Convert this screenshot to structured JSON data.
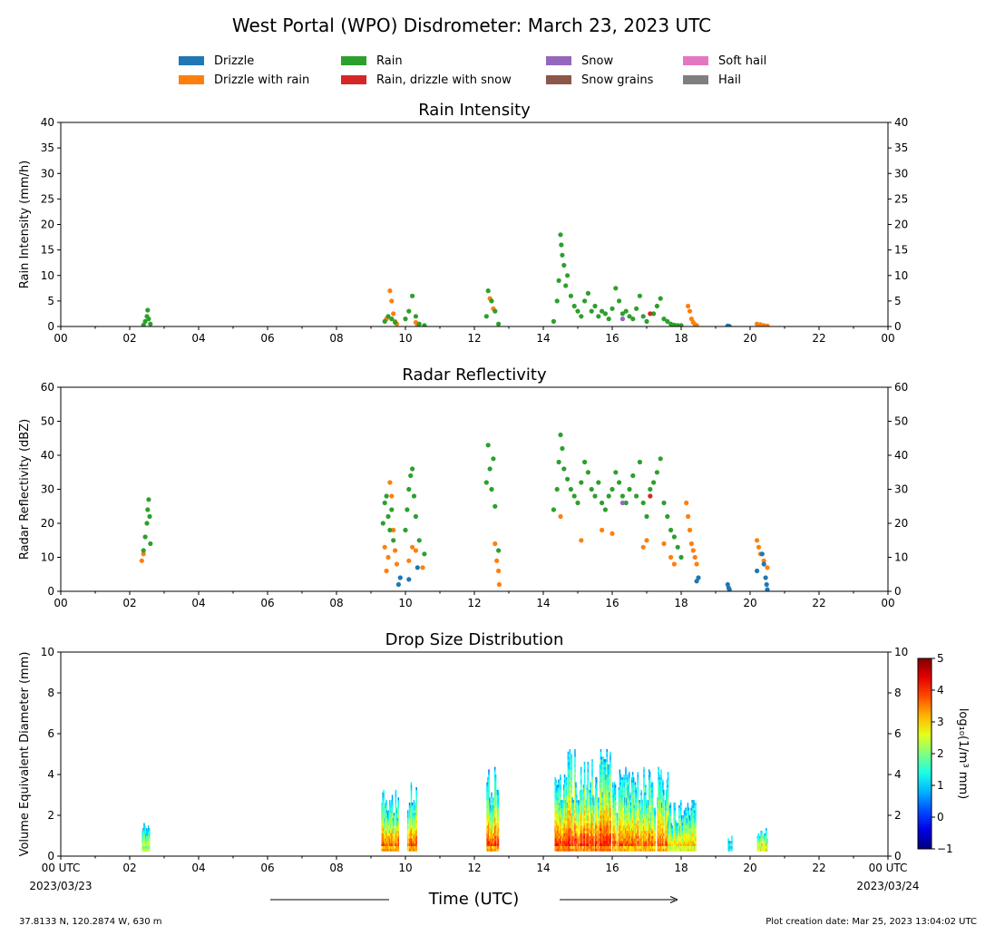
{
  "title": "West Portal (WPO) Disdrometer: March 23, 2023 UTC",
  "legend": [
    {
      "label": "Drizzle",
      "color": "#1f77b4"
    },
    {
      "label": "Drizzle with rain",
      "color": "#ff7f0e"
    },
    {
      "label": "Rain",
      "color": "#2ca02c"
    },
    {
      "label": "Rain, drizzle with snow",
      "color": "#d62728"
    },
    {
      "label": "Snow",
      "color": "#9467bd"
    },
    {
      "label": "Snow grains",
      "color": "#8c564b"
    },
    {
      "label": "Soft hail",
      "color": "#e377c2"
    },
    {
      "label": "Hail",
      "color": "#7f7f7f"
    }
  ],
  "xaxis": {
    "label": "Time (UTC)",
    "ticks": [
      "00",
      "02",
      "04",
      "06",
      "08",
      "10",
      "12",
      "14",
      "16",
      "18",
      "20",
      "22",
      "00"
    ],
    "bottom_first": "00 UTC",
    "bottom_last": "00 UTC",
    "start_date": "2023/03/23",
    "end_date": "2023/03/24"
  },
  "footer": {
    "location": "37.8133 N, 120.2874 W, 630 m",
    "creation": "Plot creation date: Mar 25, 2023 13:04:02 UTC"
  },
  "chart_data": [
    {
      "type": "scatter",
      "title": "Rain Intensity",
      "ylabel": "Rain Intensity (mm/h)",
      "xlim": [
        0,
        24
      ],
      "ylim": [
        0,
        40
      ],
      "yticks": [
        0,
        5,
        10,
        15,
        20,
        25,
        30,
        35,
        40
      ],
      "series": [
        {
          "name": "Rain",
          "color": "#2ca02c",
          "points": [
            [
              2.4,
              0.3
            ],
            [
              2.45,
              1.0
            ],
            [
              2.5,
              2.0
            ],
            [
              2.52,
              3.2
            ],
            [
              2.55,
              1.5
            ],
            [
              2.6,
              0.5
            ],
            [
              9.4,
              1.0
            ],
            [
              9.5,
              2.0
            ],
            [
              9.6,
              1.5
            ],
            [
              9.7,
              0.8
            ],
            [
              10.0,
              1.5
            ],
            [
              10.1,
              3.0
            ],
            [
              10.2,
              6.0
            ],
            [
              10.3,
              2.0
            ],
            [
              10.4,
              0.5
            ],
            [
              10.55,
              0.2
            ],
            [
              12.35,
              2.0
            ],
            [
              12.4,
              7.0
            ],
            [
              12.5,
              5.0
            ],
            [
              12.6,
              3.0
            ],
            [
              12.7,
              0.5
            ],
            [
              14.3,
              1.0
            ],
            [
              14.4,
              5.0
            ],
            [
              14.45,
              9.0
            ],
            [
              14.5,
              18.0
            ],
            [
              14.52,
              16.0
            ],
            [
              14.55,
              14.0
            ],
            [
              14.6,
              12.0
            ],
            [
              14.65,
              8.0
            ],
            [
              14.7,
              10.0
            ],
            [
              14.8,
              6.0
            ],
            [
              14.9,
              4.0
            ],
            [
              15.0,
              3.0
            ],
            [
              15.1,
              2.0
            ],
            [
              15.2,
              5.0
            ],
            [
              15.3,
              6.5
            ],
            [
              15.4,
              3.0
            ],
            [
              15.5,
              4.0
            ],
            [
              15.6,
              2.0
            ],
            [
              15.7,
              3.0
            ],
            [
              15.8,
              2.5
            ],
            [
              15.9,
              1.5
            ],
            [
              16.0,
              3.5
            ],
            [
              16.1,
              7.5
            ],
            [
              16.2,
              5.0
            ],
            [
              16.3,
              2.5
            ],
            [
              16.4,
              3.0
            ],
            [
              16.5,
              2.0
            ],
            [
              16.6,
              1.5
            ],
            [
              16.7,
              3.5
            ],
            [
              16.8,
              6.0
            ],
            [
              16.9,
              2.0
            ],
            [
              17.0,
              1.0
            ],
            [
              17.2,
              2.5
            ],
            [
              17.3,
              4.0
            ],
            [
              17.4,
              5.5
            ],
            [
              17.5,
              1.5
            ],
            [
              17.6,
              1.0
            ],
            [
              17.7,
              0.5
            ],
            [
              17.8,
              0.3
            ],
            [
              17.9,
              0.2
            ],
            [
              18.0,
              0.2
            ]
          ]
        },
        {
          "name": "Drizzle with rain",
          "color": "#ff7f0e",
          "points": [
            [
              9.45,
              1.5
            ],
            [
              9.55,
              7.0
            ],
            [
              9.6,
              5.0
            ],
            [
              9.65,
              2.5
            ],
            [
              9.7,
              1.0
            ],
            [
              9.75,
              0.5
            ],
            [
              10.3,
              0.8
            ],
            [
              10.35,
              0.3
            ],
            [
              12.45,
              5.5
            ],
            [
              12.55,
              3.5
            ],
            [
              18.2,
              4.0
            ],
            [
              18.25,
              3.0
            ],
            [
              18.3,
              1.5
            ],
            [
              18.35,
              0.8
            ],
            [
              18.4,
              0.4
            ],
            [
              18.45,
              0.2
            ],
            [
              20.2,
              0.5
            ],
            [
              20.3,
              0.4
            ],
            [
              20.4,
              0.2
            ],
            [
              20.5,
              0.1
            ]
          ]
        },
        {
          "name": "Drizzle",
          "color": "#1f77b4",
          "points": [
            [
              19.35,
              0.1
            ],
            [
              19.4,
              0.05
            ]
          ]
        },
        {
          "name": "Rain, drizzle with snow",
          "color": "#d62728",
          "points": [
            [
              17.1,
              2.5
            ]
          ]
        },
        {
          "name": "Snow",
          "color": "#9467bd",
          "points": [
            [
              16.3,
              1.5
            ]
          ]
        }
      ]
    },
    {
      "type": "scatter",
      "title": "Radar Reflectivity",
      "ylabel": "Radar Reflectivity (dBZ)",
      "xlim": [
        0,
        24
      ],
      "ylim": [
        0,
        60
      ],
      "yticks": [
        0,
        10,
        20,
        30,
        40,
        50,
        60
      ],
      "series": [
        {
          "name": "Rain",
          "color": "#2ca02c",
          "points": [
            [
              2.4,
              12
            ],
            [
              2.45,
              16
            ],
            [
              2.5,
              20
            ],
            [
              2.52,
              24
            ],
            [
              2.55,
              27
            ],
            [
              2.58,
              22
            ],
            [
              2.6,
              14
            ],
            [
              9.35,
              20
            ],
            [
              9.4,
              26
            ],
            [
              9.45,
              28
            ],
            [
              9.5,
              22
            ],
            [
              9.55,
              18
            ],
            [
              9.6,
              24
            ],
            [
              9.65,
              15
            ],
            [
              10.0,
              18
            ],
            [
              10.05,
              24
            ],
            [
              10.1,
              30
            ],
            [
              10.15,
              34
            ],
            [
              10.2,
              36
            ],
            [
              10.25,
              28
            ],
            [
              10.3,
              22
            ],
            [
              10.4,
              15
            ],
            [
              10.55,
              11
            ],
            [
              12.35,
              32
            ],
            [
              12.4,
              43
            ],
            [
              12.45,
              36
            ],
            [
              12.5,
              30
            ],
            [
              12.55,
              39
            ],
            [
              12.6,
              25
            ],
            [
              12.7,
              12
            ],
            [
              14.3,
              24
            ],
            [
              14.4,
              30
            ],
            [
              14.45,
              38
            ],
            [
              14.5,
              46
            ],
            [
              14.55,
              42
            ],
            [
              14.6,
              36
            ],
            [
              14.7,
              33
            ],
            [
              14.8,
              30
            ],
            [
              14.9,
              28
            ],
            [
              15.0,
              26
            ],
            [
              15.1,
              32
            ],
            [
              15.2,
              38
            ],
            [
              15.3,
              35
            ],
            [
              15.4,
              30
            ],
            [
              15.5,
              28
            ],
            [
              15.6,
              32
            ],
            [
              15.7,
              26
            ],
            [
              15.8,
              24
            ],
            [
              15.9,
              28
            ],
            [
              16.0,
              30
            ],
            [
              16.1,
              35
            ],
            [
              16.2,
              32
            ],
            [
              16.3,
              28
            ],
            [
              16.4,
              26
            ],
            [
              16.5,
              30
            ],
            [
              16.6,
              34
            ],
            [
              16.7,
              28
            ],
            [
              16.8,
              38
            ],
            [
              16.9,
              26
            ],
            [
              17.0,
              22
            ],
            [
              17.1,
              30
            ],
            [
              17.2,
              32
            ],
            [
              17.3,
              35
            ],
            [
              17.4,
              39
            ],
            [
              17.5,
              26
            ],
            [
              17.6,
              22
            ],
            [
              17.7,
              18
            ],
            [
              17.8,
              16
            ],
            [
              17.9,
              13
            ],
            [
              18.0,
              10
            ]
          ]
        },
        {
          "name": "Drizzle with rain",
          "color": "#ff7f0e",
          "points": [
            [
              2.35,
              9
            ],
            [
              2.4,
              11
            ],
            [
              9.4,
              13
            ],
            [
              9.45,
              6
            ],
            [
              9.5,
              10
            ],
            [
              9.55,
              32
            ],
            [
              9.6,
              28
            ],
            [
              9.65,
              18
            ],
            [
              9.7,
              12
            ],
            [
              9.75,
              8
            ],
            [
              10.1,
              9
            ],
            [
              10.2,
              13
            ],
            [
              10.3,
              12
            ],
            [
              10.5,
              7
            ],
            [
              12.6,
              14
            ],
            [
              12.65,
              9
            ],
            [
              12.7,
              6
            ],
            [
              12.72,
              2
            ],
            [
              14.5,
              22
            ],
            [
              15.1,
              15
            ],
            [
              15.7,
              18
            ],
            [
              16.0,
              17
            ],
            [
              16.9,
              13
            ],
            [
              17.0,
              15
            ],
            [
              17.5,
              14
            ],
            [
              17.7,
              10
            ],
            [
              17.8,
              8
            ],
            [
              18.15,
              26
            ],
            [
              18.2,
              22
            ],
            [
              18.25,
              18
            ],
            [
              18.3,
              14
            ],
            [
              18.35,
              12
            ],
            [
              18.4,
              10
            ],
            [
              18.45,
              8
            ],
            [
              20.2,
              15
            ],
            [
              20.25,
              13
            ],
            [
              20.3,
              11
            ],
            [
              20.4,
              9
            ],
            [
              20.5,
              7
            ]
          ]
        },
        {
          "name": "Drizzle",
          "color": "#1f77b4",
          "points": [
            [
              9.85,
              4
            ],
            [
              9.8,
              2
            ],
            [
              10.1,
              3.5
            ],
            [
              10.35,
              7
            ],
            [
              18.45,
              3
            ],
            [
              18.5,
              4
            ],
            [
              19.35,
              2
            ],
            [
              19.38,
              1
            ],
            [
              19.4,
              0.5
            ],
            [
              20.2,
              6
            ],
            [
              20.35,
              11
            ],
            [
              20.4,
              8
            ],
            [
              20.45,
              4
            ],
            [
              20.48,
              2
            ],
            [
              20.5,
              0.5
            ]
          ]
        },
        {
          "name": "Rain, drizzle with snow",
          "color": "#d62728",
          "points": [
            [
              17.1,
              28
            ]
          ]
        },
        {
          "name": "Snow",
          "color": "#9467bd",
          "points": [
            [
              16.3,
              26
            ]
          ]
        }
      ]
    },
    {
      "type": "heatmap",
      "title": "Drop Size Distribution",
      "ylabel": "Volume Equivalent Diameter (mm)",
      "xlim": [
        0,
        24
      ],
      "ylim": [
        0,
        10
      ],
      "yticks": [
        0,
        2,
        4,
        6,
        8,
        10
      ],
      "colorbar": {
        "label": "log₁₀(1/m³ mm)",
        "ticks": [
          -1,
          0,
          1,
          2,
          3,
          4,
          5
        ],
        "range": [
          -1,
          5
        ]
      },
      "bursts": [
        {
          "start": 2.35,
          "end": 2.55,
          "top": 1.5,
          "peak": 3.5
        },
        {
          "start": 9.3,
          "end": 9.8,
          "top": 3.0,
          "peak": 4.5
        },
        {
          "start": 10.05,
          "end": 10.35,
          "top": 3.5,
          "peak": 4.5
        },
        {
          "start": 12.35,
          "end": 12.7,
          "top": 4.5,
          "peak": 4.5
        },
        {
          "start": 14.3,
          "end": 16.0,
          "top": 5.0,
          "peak": 4.6
        },
        {
          "start": 16.0,
          "end": 17.6,
          "top": 4.0,
          "peak": 4.3
        },
        {
          "start": 17.6,
          "end": 18.4,
          "top": 2.5,
          "peak": 3.8
        },
        {
          "start": 19.35,
          "end": 19.45,
          "top": 0.8,
          "peak": 2.5
        },
        {
          "start": 20.2,
          "end": 20.5,
          "top": 1.0,
          "peak": 4.5
        }
      ]
    }
  ]
}
